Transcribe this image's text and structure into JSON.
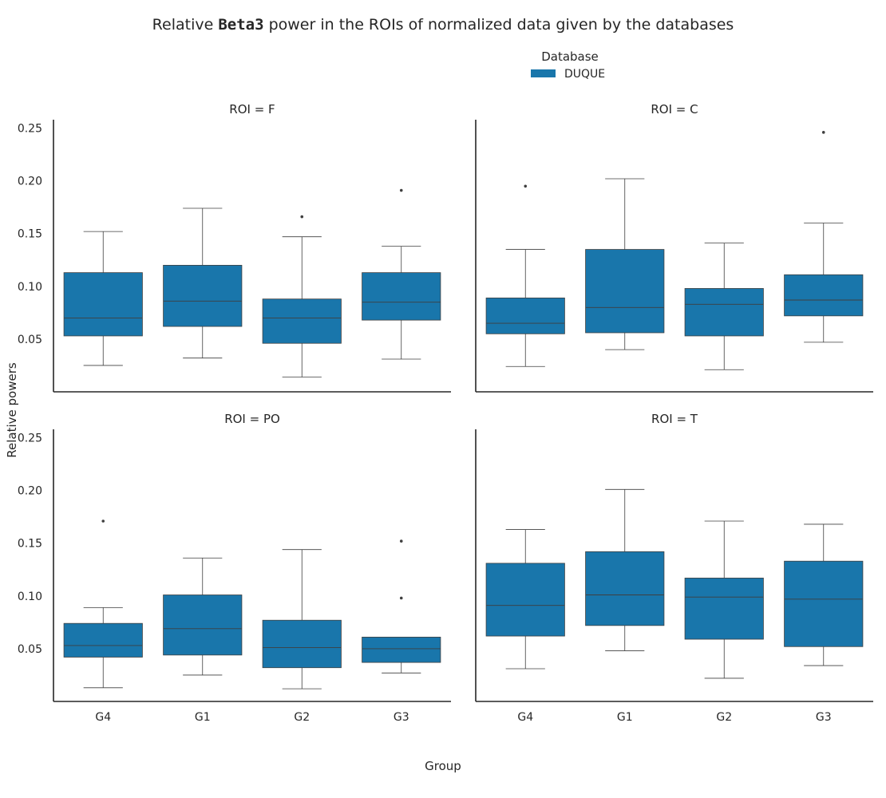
{
  "chart_data": {
    "type": "box",
    "title_parts": [
      "Relative ",
      "Beta3",
      " power in the ROIs of normalized data given by the databases"
    ],
    "xlabel": "Group",
    "ylabel": "Relative powers",
    "categories": [
      "G4",
      "G1",
      "G2",
      "G3"
    ],
    "ylim": [
      0.0,
      0.258
    ],
    "yticks": [
      0.05,
      0.1,
      0.15,
      0.2,
      0.25
    ],
    "ytick_labels": [
      "0.05",
      "0.10",
      "0.15",
      "0.20",
      "0.25"
    ],
    "grid": false,
    "legend": {
      "title": "Database",
      "placement": "top-center",
      "entries": [
        {
          "label": "DUQUE",
          "color": "#1976ab"
        }
      ]
    },
    "series_color": "#1976ab",
    "panels": [
      {
        "title": "ROI = F",
        "boxes": [
          {
            "group": "G4",
            "whisker_low": 0.025,
            "q1": 0.053,
            "median": 0.07,
            "q3": 0.113,
            "whisker_high": 0.152,
            "outliers": []
          },
          {
            "group": "G1",
            "whisker_low": 0.032,
            "q1": 0.062,
            "median": 0.086,
            "q3": 0.12,
            "whisker_high": 0.174,
            "outliers": []
          },
          {
            "group": "G2",
            "whisker_low": 0.014,
            "q1": 0.046,
            "median": 0.07,
            "q3": 0.088,
            "whisker_high": 0.147,
            "outliers": [
              0.166
            ]
          },
          {
            "group": "G3",
            "whisker_low": 0.031,
            "q1": 0.068,
            "median": 0.085,
            "q3": 0.113,
            "whisker_high": 0.138,
            "outliers": [
              0.191
            ]
          }
        ]
      },
      {
        "title": "ROI = C",
        "boxes": [
          {
            "group": "G4",
            "whisker_low": 0.024,
            "q1": 0.055,
            "median": 0.065,
            "q3": 0.089,
            "whisker_high": 0.135,
            "outliers": [
              0.195
            ]
          },
          {
            "group": "G1",
            "whisker_low": 0.04,
            "q1": 0.056,
            "median": 0.08,
            "q3": 0.135,
            "whisker_high": 0.202,
            "outliers": []
          },
          {
            "group": "G2",
            "whisker_low": 0.021,
            "q1": 0.053,
            "median": 0.083,
            "q3": 0.098,
            "whisker_high": 0.141,
            "outliers": []
          },
          {
            "group": "G3",
            "whisker_low": 0.047,
            "q1": 0.072,
            "median": 0.087,
            "q3": 0.111,
            "whisker_high": 0.16,
            "outliers": [
              0.246
            ]
          }
        ]
      },
      {
        "title": "ROI = PO",
        "boxes": [
          {
            "group": "G4",
            "whisker_low": 0.013,
            "q1": 0.042,
            "median": 0.053,
            "q3": 0.074,
            "whisker_high": 0.089,
            "outliers": [
              0.171
            ]
          },
          {
            "group": "G1",
            "whisker_low": 0.025,
            "q1": 0.044,
            "median": 0.069,
            "q3": 0.101,
            "whisker_high": 0.136,
            "outliers": []
          },
          {
            "group": "G2",
            "whisker_low": 0.012,
            "q1": 0.032,
            "median": 0.051,
            "q3": 0.077,
            "whisker_high": 0.144,
            "outliers": []
          },
          {
            "group": "G3",
            "whisker_low": 0.027,
            "q1": 0.037,
            "median": 0.05,
            "q3": 0.061,
            "whisker_high": 0.061,
            "outliers": [
              0.098,
              0.152
            ]
          }
        ]
      },
      {
        "title": "ROI = T",
        "boxes": [
          {
            "group": "G4",
            "whisker_low": 0.031,
            "q1": 0.062,
            "median": 0.091,
            "q3": 0.131,
            "whisker_high": 0.163,
            "outliers": []
          },
          {
            "group": "G1",
            "whisker_low": 0.048,
            "q1": 0.072,
            "median": 0.101,
            "q3": 0.142,
            "whisker_high": 0.201,
            "outliers": []
          },
          {
            "group": "G2",
            "whisker_low": 0.022,
            "q1": 0.059,
            "median": 0.099,
            "q3": 0.117,
            "whisker_high": 0.171,
            "outliers": []
          },
          {
            "group": "G3",
            "whisker_low": 0.034,
            "q1": 0.052,
            "median": 0.097,
            "q3": 0.133,
            "whisker_high": 0.168,
            "outliers": []
          }
        ]
      }
    ]
  }
}
